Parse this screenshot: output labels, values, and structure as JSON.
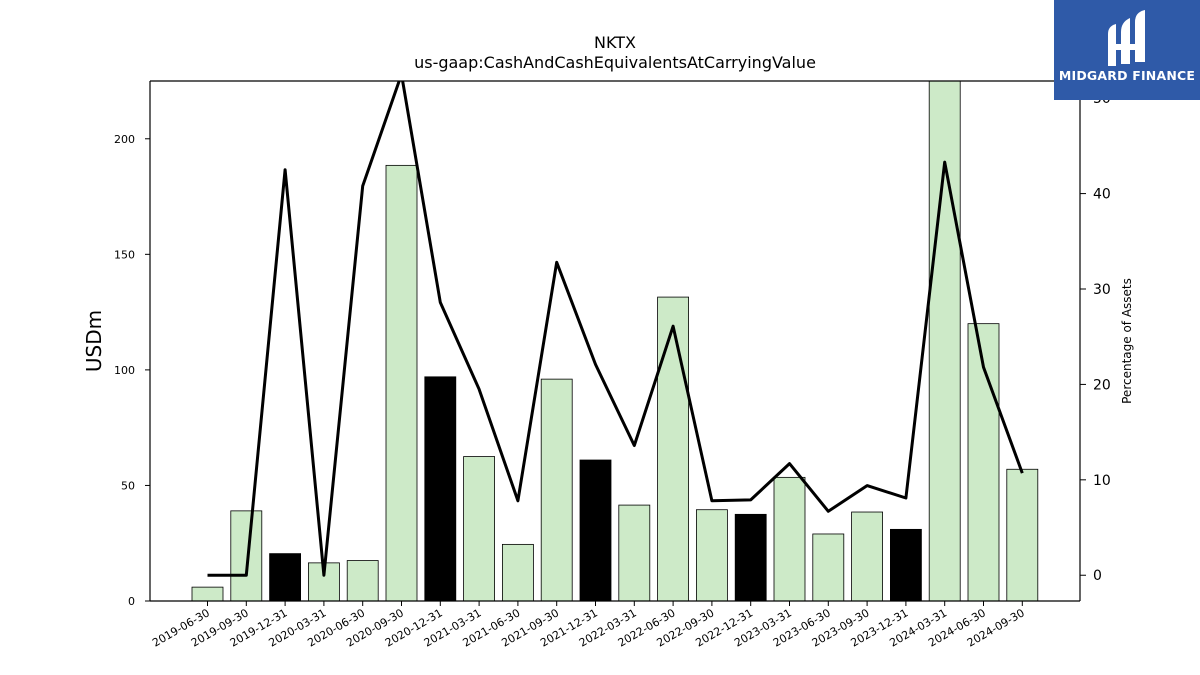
{
  "chart_data": {
    "type": "bar",
    "title": "NKTX",
    "subtitle": "us-gaap:CashAndCashEquivalentsAtCarryingValue",
    "ylabel": "USDm",
    "y2label": "Percentage of Assets",
    "ylim": [
      0,
      225
    ],
    "y2lim": [
      -2.7,
      51.8
    ],
    "yticks": [
      0,
      50,
      100,
      150,
      200
    ],
    "y2ticks": [
      0,
      10,
      20,
      30,
      40,
      50
    ],
    "categories": [
      "2019-06-30",
      "2019-09-30",
      "2019-12-31",
      "2020-03-31",
      "2020-06-30",
      "2020-09-30",
      "2020-12-31",
      "2021-03-31",
      "2021-06-30",
      "2021-09-30",
      "2021-12-31",
      "2022-03-31",
      "2022-06-30",
      "2022-09-30",
      "2022-12-31",
      "2023-03-31",
      "2023-06-30",
      "2023-09-30",
      "2023-12-31",
      "2024-03-31",
      "2024-06-30",
      "2024-09-30"
    ],
    "series": [
      {
        "type": "bar",
        "axis": "left",
        "values": [
          6,
          39,
          20.5,
          16.5,
          17.5,
          188.5,
          97,
          62.5,
          24.5,
          96,
          61,
          41.5,
          131.5,
          39.5,
          37.5,
          53.5,
          29,
          38.5,
          31,
          225,
          120,
          57
        ],
        "highlight": [
          false,
          false,
          true,
          false,
          false,
          false,
          true,
          false,
          false,
          false,
          true,
          false,
          false,
          false,
          true,
          false,
          false,
          false,
          true,
          false,
          false,
          false
        ]
      },
      {
        "type": "line",
        "axis": "right",
        "values": [
          0,
          0,
          42.5,
          0,
          40.8,
          52.5,
          28.6,
          19.5,
          7.8,
          32.8,
          22.1,
          13.6,
          26.1,
          7.8,
          7.9,
          11.7,
          6.7,
          9.4,
          8.1,
          43.3,
          21.8,
          10.7
        ]
      }
    ],
    "colors": {
      "bar_fill": "#cdeac8",
      "bar_highlight": "#000000",
      "bar_edge": "#000000",
      "line": "#000000"
    }
  },
  "logo": {
    "text": "MIDGARD FINANCE",
    "background": "#2f5aa8"
  }
}
